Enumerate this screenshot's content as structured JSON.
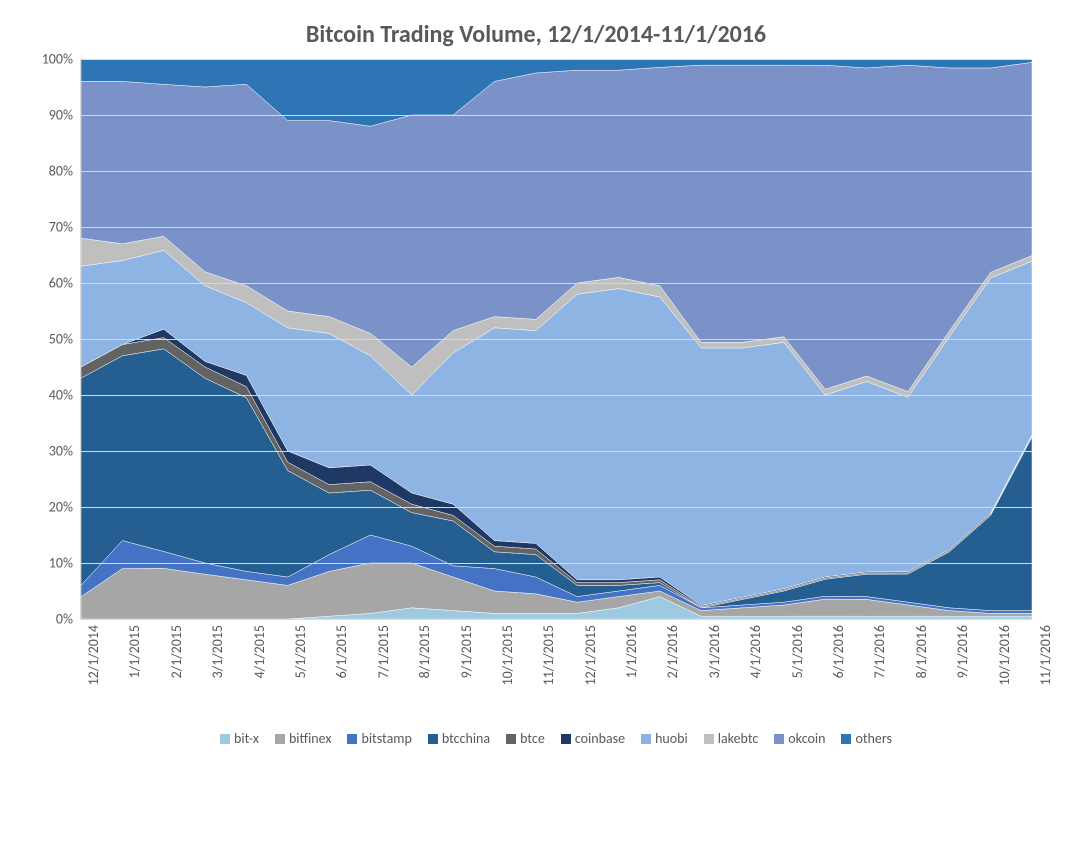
{
  "chart": {
    "type": "stacked-area-100pct",
    "title": "Bitcoin Trading Volume, 12/1/2014-11/1/2016",
    "title_fontsize": 24,
    "title_color": "#595959",
    "background_color": "#ffffff",
    "grid_color": "#d9d9d9",
    "tick_label_color": "#595959",
    "tick_fontsize": 14,
    "legend_fontsize": 14,
    "ylim": [
      0,
      100
    ],
    "ytick_step": 10,
    "y_ticks": [
      "0%",
      "10%",
      "20%",
      "30%",
      "40%",
      "50%",
      "60%",
      "70%",
      "80%",
      "90%",
      "100%"
    ],
    "x_categories": [
      "12/1/2014",
      "1/1/2015",
      "2/1/2015",
      "3/1/2015",
      "4/1/2015",
      "5/1/2015",
      "6/1/2015",
      "7/1/2015",
      "8/1/2015",
      "9/1/2015",
      "10/1/2015",
      "11/1/2015",
      "12/1/2015",
      "1/1/2016",
      "2/1/2016",
      "3/1/2016",
      "4/1/2016",
      "5/1/2016",
      "6/1/2016",
      "7/1/2016",
      "8/1/2016",
      "9/1/2016",
      "10/1/2016",
      "11/1/2016"
    ],
    "series": [
      {
        "name": "bit-x",
        "color": "#9ecae1",
        "values": [
          0,
          0,
          0,
          0,
          0,
          0,
          0.5,
          1,
          2,
          1.5,
          1,
          1,
          1,
          2,
          4,
          0.5,
          0.5,
          0.5,
          0.5,
          0.5,
          0.5,
          0.5,
          0.5,
          0.5
        ]
      },
      {
        "name": "bitfinex",
        "color": "#a6a6a6",
        "values": [
          4,
          9,
          9,
          8,
          7,
          6,
          8,
          9,
          8,
          6,
          4,
          3.5,
          2,
          2,
          1,
          1,
          1.5,
          2,
          3,
          3,
          2,
          1,
          0.5,
          0.5
        ]
      },
      {
        "name": "bitstamp",
        "color": "#4472c4",
        "values": [
          2,
          5,
          3,
          2,
          1.5,
          1.5,
          3,
          5,
          3,
          2,
          4,
          3,
          1,
          1,
          1,
          0.5,
          0.5,
          0.5,
          0.5,
          0.5,
          0.5,
          0.5,
          0.5,
          0.5
        ]
      },
      {
        "name": "btcchina",
        "color": "#255e91",
        "values": [
          37,
          33,
          36,
          33,
          31,
          19,
          11,
          8,
          6,
          8,
          3,
          4,
          2,
          1,
          0.5,
          0,
          1,
          2,
          3,
          4,
          5,
          10,
          17,
          31
        ]
      },
      {
        "name": "btce",
        "color": "#636363",
        "values": [
          2,
          2,
          2,
          2,
          2,
          1.5,
          1.5,
          1.5,
          1.5,
          1,
          1,
          1,
          0.5,
          0.5,
          0.5,
          0.2,
          0.2,
          0.2,
          0.2,
          0.2,
          0.2,
          0.2,
          0.2,
          0.2
        ]
      },
      {
        "name": "coinbase",
        "color": "#1f3864",
        "values": [
          0,
          0,
          1.5,
          1,
          2,
          2,
          3,
          3,
          2,
          2,
          1,
          1,
          0.5,
          0.5,
          0.5,
          0.2,
          0.2,
          0.2,
          0.2,
          0.2,
          0.2,
          0.2,
          0.2,
          0.2
        ]
      },
      {
        "name": "huobi",
        "color": "#8eb4e3",
        "values": [
          18,
          15,
          14,
          13.5,
          13,
          22,
          24,
          19.5,
          17.5,
          27,
          38,
          38,
          51,
          52,
          50,
          46,
          44.5,
          44,
          32,
          34,
          31,
          38,
          42,
          31
        ]
      },
      {
        "name": "lakebtc",
        "color": "#bfbfbf",
        "values": [
          5,
          3,
          2.5,
          2.5,
          3,
          3,
          3,
          4,
          5,
          4,
          2,
          2,
          2,
          2,
          2,
          1,
          1,
          1,
          1,
          1,
          1,
          1,
          1,
          1
        ]
      },
      {
        "name": "okcoin",
        "color": "#7b92c9",
        "values": [
          28,
          29,
          27,
          33,
          36,
          34,
          35,
          37,
          45,
          38.5,
          42,
          44,
          38,
          37,
          39,
          49.5,
          49.5,
          48.5,
          57,
          55,
          58,
          47,
          36.5,
          34.5
        ]
      },
      {
        "name": "others",
        "color": "#2e75b6",
        "values": [
          4,
          4,
          4.5,
          5,
          4.5,
          11,
          11,
          12,
          10,
          10,
          4,
          2.5,
          2,
          2,
          1.5,
          1.1,
          1.1,
          1.1,
          1.1,
          1.6,
          1.1,
          1.6,
          1.6,
          0.6
        ]
      }
    ]
  }
}
